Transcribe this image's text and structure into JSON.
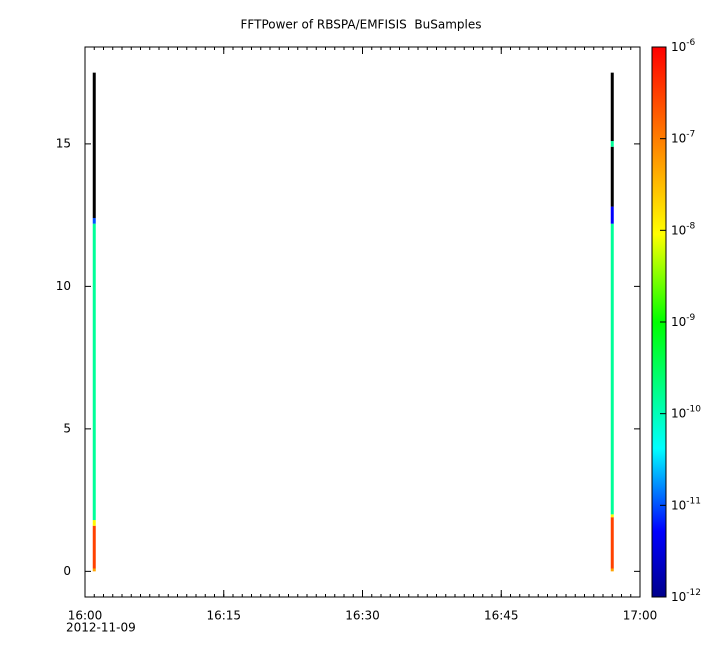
{
  "chart_data": {
    "type": "spectrogram",
    "title": "FFTPower of RBSPA/EMFISIS  BuSamples",
    "x_date_label": "2012-11-09",
    "xlim": [
      "16:00",
      "17:00"
    ],
    "xticks": [
      "16:00",
      "16:15",
      "16:30",
      "16:45",
      "17:00"
    ],
    "ylim": [
      -0.9,
      18.4
    ],
    "yticks": [
      0,
      5,
      10,
      15
    ],
    "clim": [
      1e-12,
      1e-06
    ],
    "color_scale": "log",
    "colormap": [
      "#00008b",
      "#0000ff",
      "#00ffff",
      "#00ff00",
      "#ffff00",
      "#ff0000"
    ],
    "below_color": "#000000",
    "cticks": [
      {
        "value": 1e-06,
        "label": "10",
        "exponent": "-6"
      },
      {
        "value": 1e-07,
        "label": "10",
        "exponent": "-7"
      },
      {
        "value": 1e-08,
        "label": "10",
        "exponent": "-8"
      },
      {
        "value": 1e-09,
        "label": "10",
        "exponent": "-9"
      },
      {
        "value": 1e-10,
        "label": "10",
        "exponent": "-10"
      },
      {
        "value": 1e-11,
        "label": "10",
        "exponent": "-11"
      },
      {
        "value": 1e-12,
        "label": "10",
        "exponent": "-12"
      }
    ],
    "columns": [
      {
        "x": "16:01",
        "bins": [
          0,
          0.1,
          1.6,
          1.8,
          12.2,
          12.4,
          17.5
        ],
        "values": [
          5e-08,
          3e-07,
          1e-08,
          1.5e-10,
          1e-11,
          1e-13
        ]
      },
      {
        "x": "16:57",
        "bins": [
          0,
          0.1,
          1.9,
          2.0,
          12.2,
          12.8,
          14.9,
          15.1,
          17.5
        ],
        "values": [
          5e-08,
          3e-07,
          1e-08,
          1.5e-10,
          5e-12,
          1e-13,
          1.5e-10,
          1e-13
        ]
      }
    ]
  }
}
